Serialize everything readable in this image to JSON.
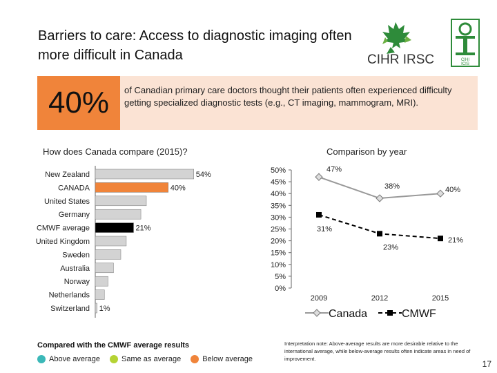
{
  "title": "Barriers to care: Access to diagnostic imaging often more difficult in Canada",
  "logos": {
    "cihr": "CIHR IRSC",
    "cihi_top": "CIHI",
    "cihi_bottom": "ICIS"
  },
  "stat": {
    "value": "40%",
    "text": "of Canadian primary care doctors thought their patients often experienced difficulty getting specialized diagnostic tests (e.g., CT imaging, mammogram, MRI)."
  },
  "colors": {
    "above": "#3bb8b8",
    "same": "#b5d334",
    "below": "#f0843a",
    "bar_default": "#d3d3d3",
    "cmwf": "#000000"
  },
  "chart_data": [
    {
      "type": "bar",
      "orientation": "horizontal",
      "title": "How does Canada compare (2015)?",
      "categories": [
        "New Zealand",
        "CANADA",
        "United States",
        "Germany",
        "CMWF average",
        "United Kingdom",
        "Sweden",
        "Australia",
        "Norway",
        "Netherlands",
        "Switzerland"
      ],
      "values": [
        54,
        40,
        28,
        25,
        21,
        17,
        14,
        10,
        7,
        5,
        1
      ],
      "labels": [
        "54%",
        "40%",
        "",
        "",
        "21%",
        "",
        "",
        "",
        "",
        "",
        "1%"
      ],
      "fills": [
        "#d3d3d3",
        "#f0843a",
        "#d3d3d3",
        "#d3d3d3",
        "#000000",
        "#d3d3d3",
        "#d3d3d3",
        "#d3d3d3",
        "#d3d3d3",
        "#d3d3d3",
        "#d3d3d3"
      ],
      "xlim": [
        0,
        60
      ]
    },
    {
      "type": "line",
      "title": "Comparison by year",
      "x": [
        "2009",
        "2012",
        "2015"
      ],
      "yticks": [
        "50%",
        "45%",
        "40%",
        "35%",
        "30%",
        "25%",
        "20%",
        "15%",
        "10%",
        "5%",
        "0%"
      ],
      "ylim": [
        0,
        50
      ],
      "series": [
        {
          "name": "Canada",
          "values": [
            47,
            38,
            40
          ],
          "labels": [
            "47%",
            "38%",
            "40%"
          ],
          "marker": "diamond",
          "color": "#999999"
        },
        {
          "name": "CMWF",
          "values": [
            31,
            23,
            21
          ],
          "labels": [
            "31%",
            "23%",
            "21%"
          ],
          "marker": "square",
          "color": "#000000",
          "dashed": true
        }
      ]
    }
  ],
  "legend": {
    "title": "Compared with the CMWF average results",
    "items": [
      {
        "label": "Above average",
        "color": "#3bb8b8"
      },
      {
        "label": "Same as average",
        "color": "#b5d334"
      },
      {
        "label": "Below average",
        "color": "#f0843a"
      }
    ]
  },
  "note": "Interpretation note: Above-average results are more desirable relative to the international average, while below-average results often indicate areas in need of improvement.",
  "page_number": "17"
}
